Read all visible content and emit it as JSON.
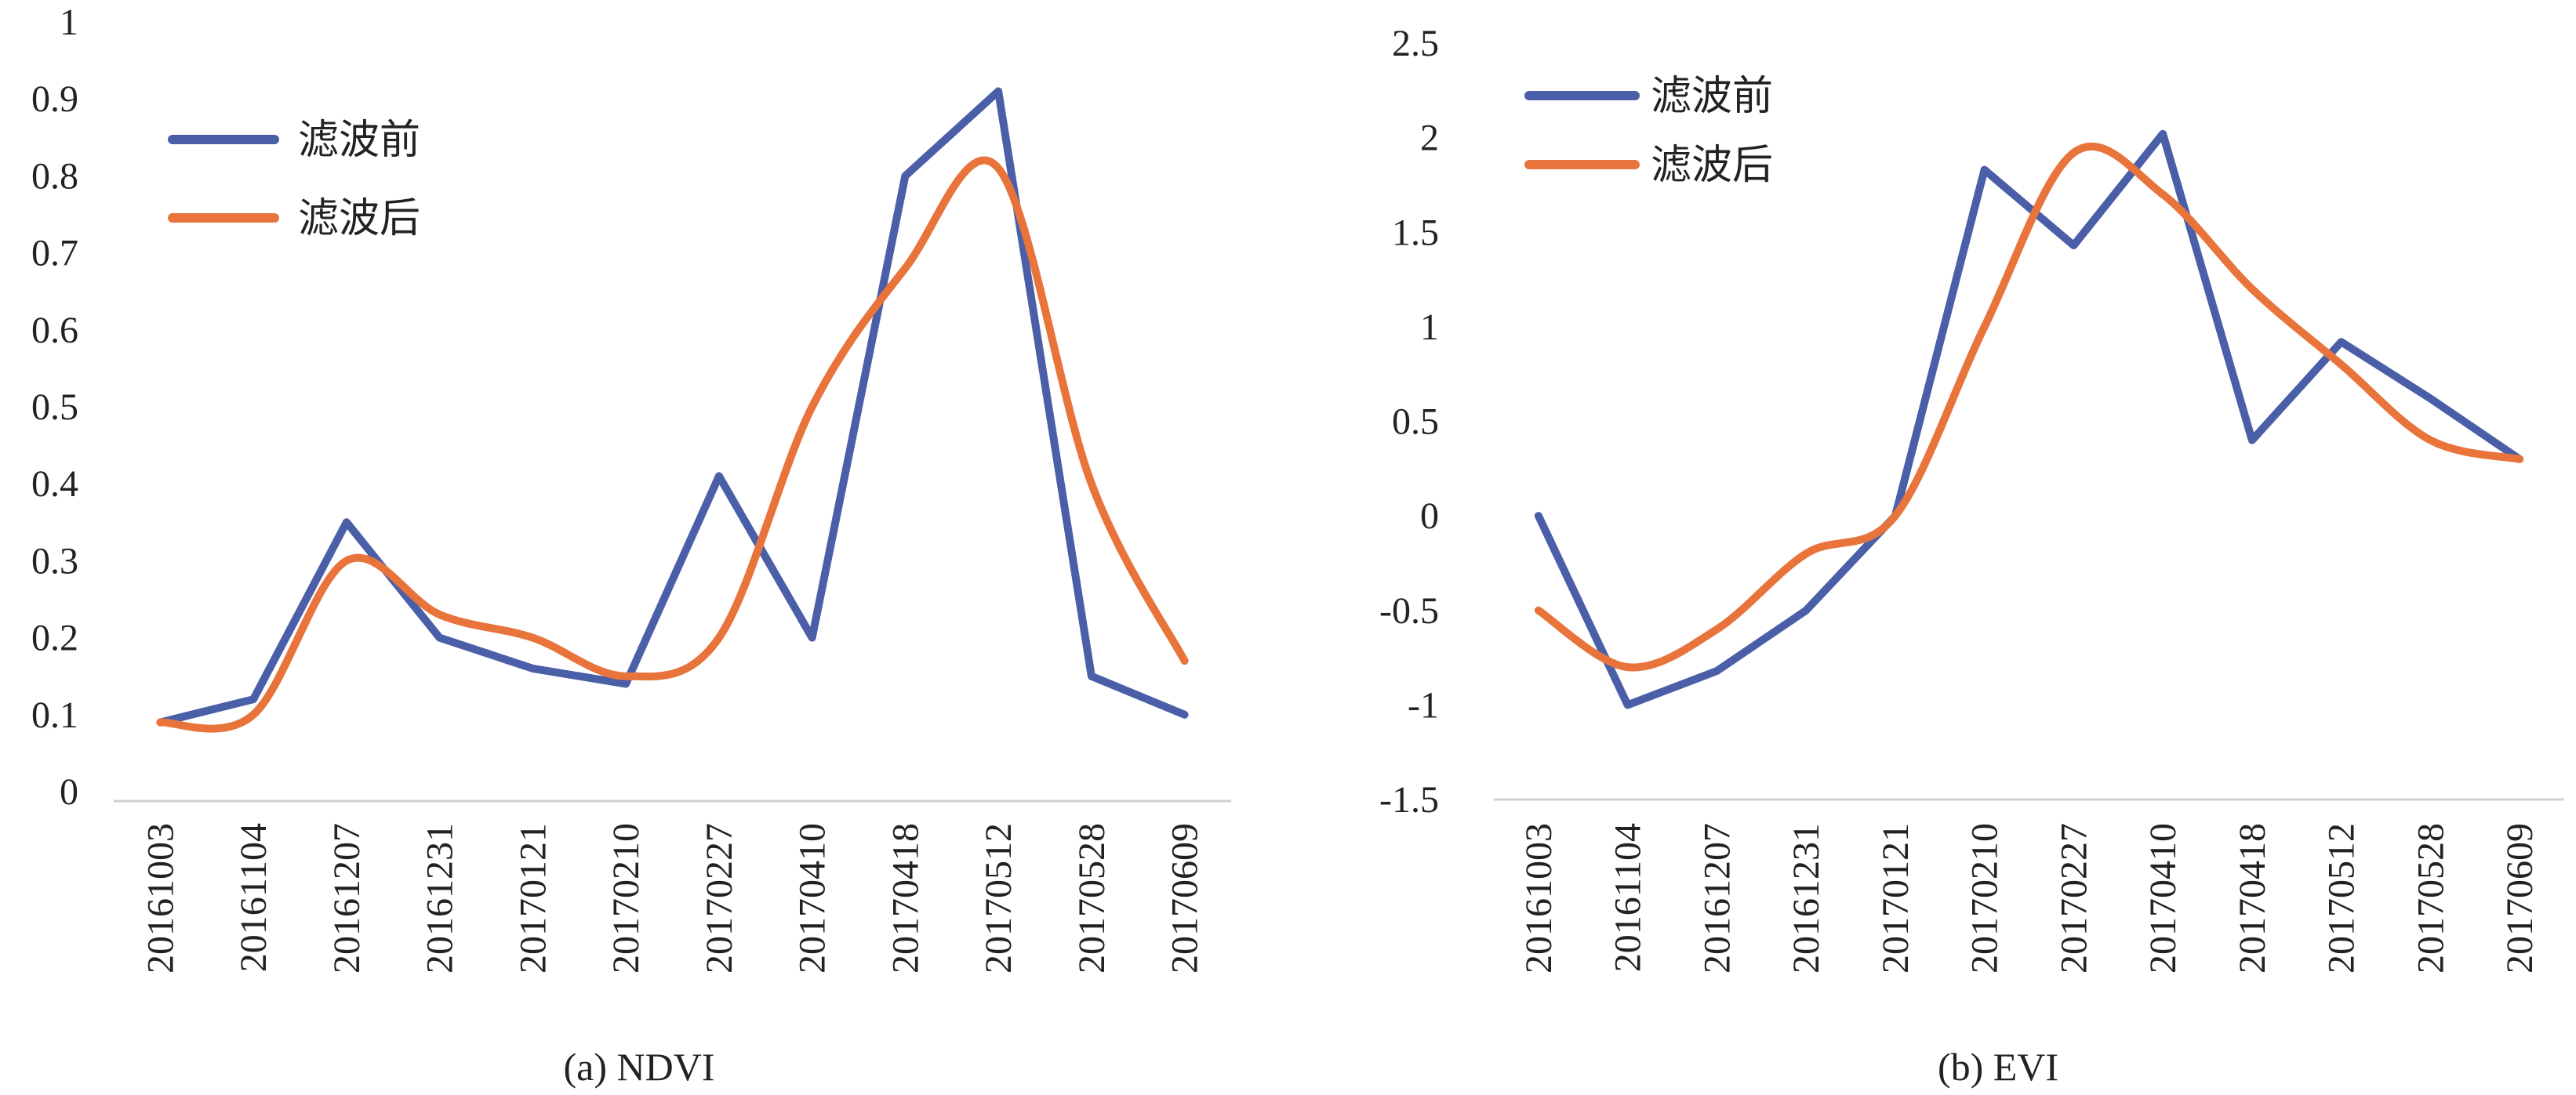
{
  "chart_data": [
    {
      "type": "line",
      "caption": "(a) NDVI",
      "categories": [
        "20161003",
        "20161104",
        "20161207",
        "20161231",
        "20170121",
        "20170210",
        "20170227",
        "20170410",
        "20170418",
        "20170512",
        "20170528",
        "20170609"
      ],
      "yticks": [
        "0",
        "0.1",
        "0.2",
        "0.3",
        "0.4",
        "0.5",
        "0.6",
        "0.7",
        "0.8",
        "0.9",
        "1"
      ],
      "ylim": [
        0,
        1
      ],
      "grid": false,
      "legend_position": "top-left",
      "series": [
        {
          "name": "滤波前",
          "color": "#4a5fa8",
          "smooth": false,
          "values": [
            0.09,
            0.12,
            0.35,
            0.2,
            0.16,
            0.14,
            0.41,
            0.2,
            0.8,
            0.91,
            0.15,
            0.1
          ]
        },
        {
          "name": "滤波后",
          "color": "#e8743b",
          "smooth": true,
          "values": [
            0.09,
            0.1,
            0.3,
            0.23,
            0.2,
            0.15,
            0.2,
            0.5,
            0.68,
            0.81,
            0.4,
            0.17
          ]
        }
      ]
    },
    {
      "type": "line",
      "caption": "(b) EVI",
      "categories": [
        "20161003",
        "20161104",
        "20161207",
        "20161231",
        "20170121",
        "20170210",
        "20170227",
        "20170410",
        "20170418",
        "20170512",
        "20170528",
        "20170609"
      ],
      "yticks": [
        "-1.5",
        "-1",
        "-0.5",
        "0",
        "0.5",
        "1",
        "1.5",
        "2",
        "2.5"
      ],
      "ylim": [
        -1.5,
        2.5
      ],
      "grid": false,
      "legend_position": "top-left",
      "series": [
        {
          "name": "滤波前",
          "color": "#4a5fa8",
          "smooth": false,
          "values": [
            0.0,
            -1.0,
            -0.82,
            -0.5,
            0.0,
            1.83,
            1.43,
            2.02,
            0.4,
            0.92,
            0.62,
            0.3
          ]
        },
        {
          "name": "滤波后",
          "color": "#e8743b",
          "smooth": true,
          "values": [
            -0.5,
            -0.8,
            -0.6,
            -0.2,
            0.0,
            1.0,
            1.92,
            1.7,
            1.2,
            0.8,
            0.4,
            0.3
          ]
        }
      ]
    }
  ]
}
